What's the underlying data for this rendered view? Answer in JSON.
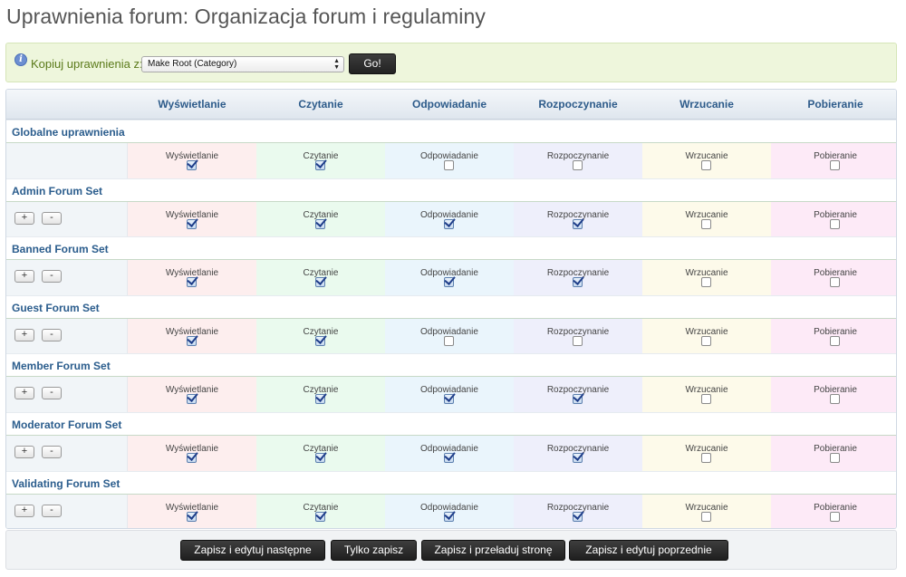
{
  "page": {
    "title": "Uprawnienia forum: Organizacja forum i regulaminy"
  },
  "copy": {
    "label": "Kopiuj uprawnienia z:",
    "selected": "Make Root (Category)",
    "go_label": "Go!",
    "info_icon": "i"
  },
  "columns": [
    {
      "label": "Wyświetlanie",
      "bg": "#fdeeee"
    },
    {
      "label": "Czytanie",
      "bg": "#eafaee"
    },
    {
      "label": "Odpowiadanie",
      "bg": "#eaf5fc"
    },
    {
      "label": "Rozpoczynanie",
      "bg": "#eeeffb"
    },
    {
      "label": "Wrzucanie",
      "bg": "#fdfaea"
    },
    {
      "label": "Pobieranie",
      "bg": "#fdeaf7"
    }
  ],
  "controls": {
    "plus_label": "+",
    "minus_label": "-"
  },
  "groups": [
    {
      "name": "Globalne uprawnienia",
      "has_controls": false,
      "checks": [
        true,
        true,
        false,
        false,
        false,
        false
      ]
    },
    {
      "name": "Admin Forum Set",
      "has_controls": true,
      "checks": [
        true,
        true,
        true,
        true,
        false,
        false
      ]
    },
    {
      "name": "Banned Forum Set",
      "has_controls": true,
      "checks": [
        true,
        true,
        true,
        true,
        false,
        false
      ]
    },
    {
      "name": "Guest Forum Set",
      "has_controls": true,
      "checks": [
        true,
        true,
        false,
        false,
        false,
        false
      ]
    },
    {
      "name": "Member Forum Set",
      "has_controls": true,
      "checks": [
        true,
        true,
        true,
        true,
        false,
        false
      ]
    },
    {
      "name": "Moderator Forum Set",
      "has_controls": true,
      "checks": [
        true,
        true,
        true,
        true,
        false,
        false
      ]
    },
    {
      "name": "Validating Forum Set",
      "has_controls": true,
      "checks": [
        true,
        true,
        true,
        true,
        false,
        false
      ]
    }
  ],
  "footer": {
    "buttons": [
      "Zapisz i edytuj następne",
      "Tylko zapisz",
      "Zapisz i przeładuj stronę",
      "Zapisz i edytuj poprzednie"
    ]
  }
}
